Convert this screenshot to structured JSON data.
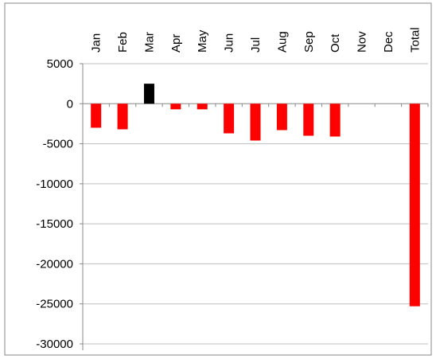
{
  "chart_data": {
    "type": "bar",
    "categories": [
      "Jan",
      "Feb",
      "Mar",
      "Apr",
      "May",
      "Jun",
      "Jul",
      "Aug",
      "Sep",
      "Oct",
      "Nov",
      "Dec",
      "Total"
    ],
    "values": [
      -3000,
      -3200,
      2500,
      -700,
      -700,
      -3700,
      -4600,
      -3300,
      -4000,
      -4100,
      null,
      null,
      -25300
    ],
    "ylim": [
      -30000,
      5000
    ],
    "yticks": [
      5000,
      0,
      -5000,
      -10000,
      -15000,
      -20000,
      -25000,
      -30000
    ],
    "grid": true,
    "legend": "none",
    "colors": {
      "negative": "#ff0000",
      "positive": "#000000",
      "grid": "#bfbfbf",
      "axis": "#888888",
      "frame": "#888888"
    }
  }
}
